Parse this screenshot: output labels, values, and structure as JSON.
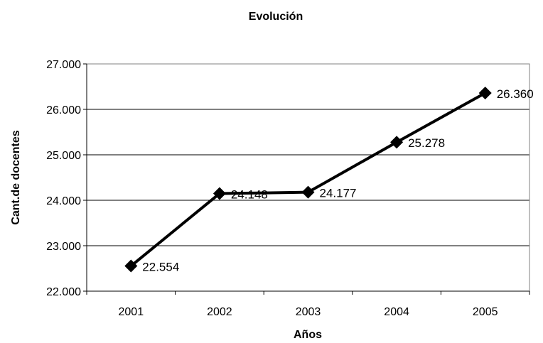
{
  "chart_data": {
    "type": "line",
    "title": "Evolución",
    "xlabel": "Años",
    "ylabel": "Cant.de docentes",
    "categories": [
      "2001",
      "2002",
      "2003",
      "2004",
      "2005"
    ],
    "series": [
      {
        "values": [
          22554,
          24148,
          24177,
          25278,
          26360
        ],
        "data_labels": [
          "22.554",
          "24.148",
          "24.177",
          "25.278",
          "26.360"
        ],
        "marker": "diamond",
        "color": "#000000"
      }
    ],
    "ylim": [
      22000,
      27000
    ],
    "yticks": [
      22000,
      23000,
      24000,
      25000,
      26000,
      27000
    ],
    "ytick_labels": [
      "22.000",
      "23.000",
      "24.000",
      "25.000",
      "26.000",
      "27.000"
    ],
    "grid": true,
    "legend": "none"
  }
}
